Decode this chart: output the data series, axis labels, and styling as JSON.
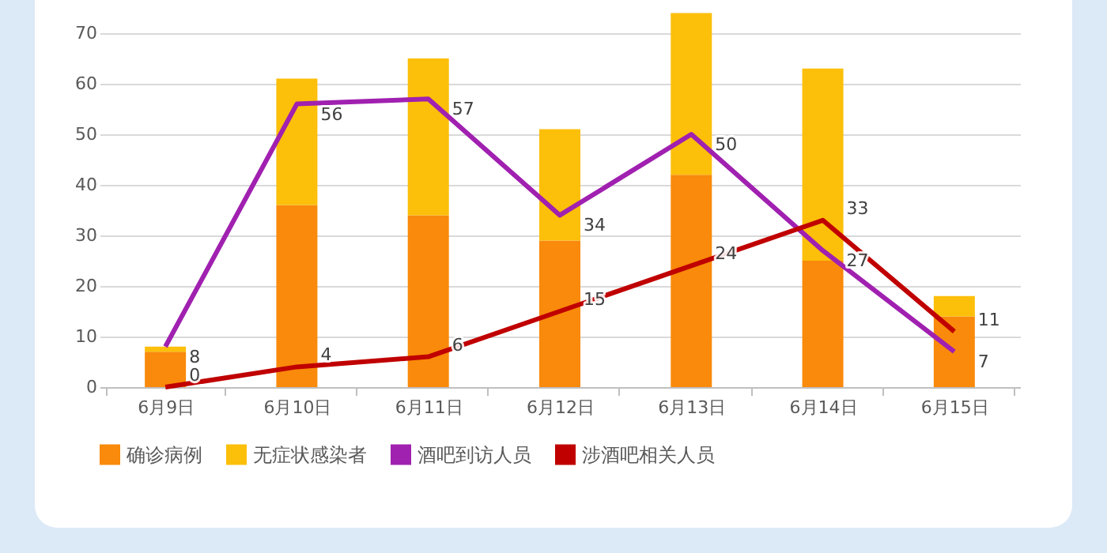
{
  "chart_data": {
    "type": "bar",
    "stacked": true,
    "categories": [
      "6月9日",
      "6月10日",
      "6月11日",
      "6月12日",
      "6月13日",
      "6月14日",
      "6月15日"
    ],
    "series": [
      {
        "name": "确诊病例",
        "color": "#f98a0b",
        "values": [
          7,
          36,
          34,
          29,
          42,
          25,
          14
        ]
      },
      {
        "name": "无症状感染者",
        "color": "#fcbf0a",
        "values": [
          1,
          25,
          31,
          22,
          32,
          38,
          4
        ]
      },
      {
        "name": "酒吧到访人员",
        "type": "line",
        "color": "#a020b0",
        "values": [
          8,
          56,
          57,
          34,
          50,
          27,
          7
        ],
        "value_labels": [
          "8",
          "56",
          "57",
          "34",
          "50",
          "27",
          "7"
        ]
      },
      {
        "name": "涉酒吧相关人员",
        "type": "line",
        "color": "#c00000",
        "values": [
          0,
          4,
          6,
          15,
          24,
          33,
          11
        ],
        "value_labels": [
          "0",
          "4",
          "6",
          "15",
          "24",
          "33",
          "11"
        ]
      }
    ],
    "ylim": [
      0,
      75
    ],
    "yticks": [
      0,
      10,
      20,
      30,
      40,
      50,
      60,
      70
    ],
    "grid": "y",
    "legend": "bottom"
  }
}
